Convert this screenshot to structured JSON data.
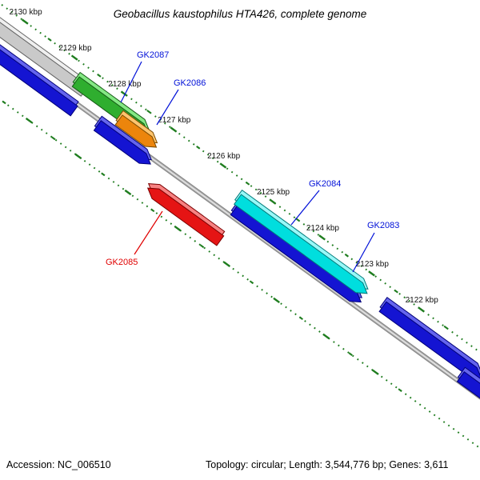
{
  "title": "Geobacillus kaustophilus HTA426, complete genome",
  "ruler": {
    "tick_labels": [
      "2130 kbp",
      "2129 kbp",
      "2128 kbp",
      "2127 kbp",
      "2126 kbp",
      "2125 kbp",
      "2124 kbp",
      "2123 kbp",
      "2122 kbp"
    ],
    "dot_color": "#1f7d1f"
  },
  "axis": {
    "color": "#8a8a8a"
  },
  "genes": [
    {
      "name": "gene-unlabeled-1",
      "label": "",
      "fill": "#c9c9c9",
      "top": "#efefef",
      "stroke": "#5f5f5f"
    },
    {
      "name": "gene-unlabeled-2",
      "label": "",
      "fill": "#1414d2",
      "top": "#6464ee",
      "stroke": "#000078"
    },
    {
      "name": "gene-unlabeled-3",
      "label": "",
      "fill": "#1414d2",
      "top": "#6464ee",
      "stroke": "#000078"
    },
    {
      "name": "gene-gk2087",
      "label": "GK2087",
      "fill": "#2fae2f",
      "top": "#84e884",
      "stroke": "#145914"
    },
    {
      "name": "gene-gk2086",
      "label": "GK2086",
      "fill": "#ec850c",
      "top": "#ffc56f",
      "stroke": "#7a4a00"
    },
    {
      "name": "gene-gk2083",
      "label": "GK2083",
      "fill": "#1414d2",
      "top": "#6464ee",
      "stroke": "#000078"
    },
    {
      "name": "gene-gk2084",
      "label": "GK2084",
      "fill": "#00dede",
      "top": "#98f8f8",
      "stroke": "#007878"
    },
    {
      "name": "gene-gk2085",
      "label": "GK2085",
      "fill": "#e51414",
      "top": "#f78282",
      "stroke": "#7a0000"
    },
    {
      "name": "gene-unlabeled-4",
      "label": "",
      "fill": "#1414d2",
      "top": "#6464ee",
      "stroke": "#000078"
    },
    {
      "name": "gene-unlabeled-5",
      "label": "",
      "fill": "#1414d2",
      "top": "#6464ee",
      "stroke": "#000078"
    }
  ],
  "gene_labels": [
    {
      "text": "GK2087",
      "color": "#0010d8"
    },
    {
      "text": "GK2086",
      "color": "#0010d8"
    },
    {
      "text": "GK2084",
      "color": "#0010d8"
    },
    {
      "text": "GK2083",
      "color": "#0010d8"
    },
    {
      "text": "GK2085",
      "color": "#e00000"
    }
  ],
  "status_bar": {
    "accession": "Accession: NC_006510",
    "topology": "Topology: circular; Length: 3,544,776 bp; Genes: 3,611"
  }
}
